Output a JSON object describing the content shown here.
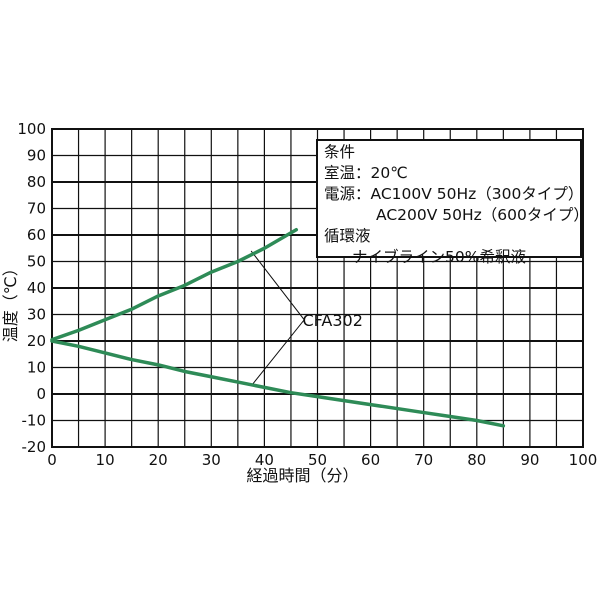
{
  "chart_data": {
    "type": "line",
    "xlabel": "経過時間（分）",
    "ylabel": "温度（℃）",
    "xlim": [
      0,
      100
    ],
    "ylim": [
      -20,
      100
    ],
    "xticks": [
      0,
      10,
      20,
      30,
      40,
      50,
      60,
      70,
      80,
      90,
      100
    ],
    "yticks": [
      100,
      90,
      80,
      70,
      60,
      50,
      40,
      30,
      20,
      10,
      0,
      -10,
      -20
    ],
    "grid": true,
    "line_color": "#2e8b57",
    "series": [
      {
        "x": [
          0,
          5,
          10,
          15,
          20,
          25,
          30,
          35,
          40,
          46
        ],
        "y": [
          20.5,
          24,
          28,
          32,
          37,
          41,
          46,
          50,
          55,
          62
        ]
      },
      {
        "x": [
          0,
          5,
          10,
          15,
          20,
          25,
          30,
          35,
          40,
          45,
          50,
          55,
          60,
          65,
          70,
          75,
          80,
          85
        ],
        "y": [
          20,
          18,
          15.5,
          13,
          11,
          8.5,
          6.5,
          4.5,
          2.5,
          0.5,
          -1,
          -2.5,
          -4,
          -5.5,
          -7,
          -8.5,
          -10,
          -12
        ]
      }
    ],
    "annotation": "CFA302",
    "conditions": {
      "title": "条件",
      "room_temp": "室温：20℃",
      "power_1": "電源：AC100V 50Hz（300タイプ）",
      "power_2": "AC200V 50Hz（600タイプ）",
      "fluid_label": "循環液",
      "fluid": "ナイブライン50%希釈液"
    }
  }
}
